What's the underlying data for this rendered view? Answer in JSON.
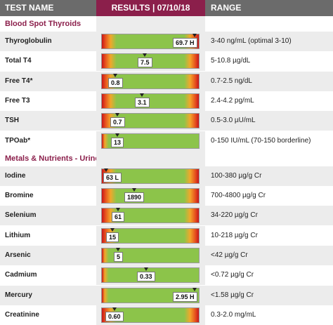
{
  "header": {
    "name": "TEST NAME",
    "results": "RESULTS | 07/10/18",
    "range": "RANGE"
  },
  "colors": {
    "brand": "#8b1f4b",
    "header_gray": "#6b6b6b",
    "row_shade": "#ececec",
    "bar_green": "#8cc44a",
    "bar_red": "#c8161b",
    "bar_orange": "#f2a72b"
  },
  "sections": [
    {
      "title": "Blood Spot Thyroids",
      "tests": [
        {
          "name": "Thyroglobulin",
          "value": "69.7 H",
          "level": 0.96,
          "range": "3-40 ng/mL (optimal 3-10)",
          "bar": "grad"
        },
        {
          "name": "Total T4",
          "value": "7.5",
          "level": 0.44,
          "range": "5-10.8 µg/dL",
          "bar": "grad"
        },
        {
          "name": "Free T4*",
          "value": "0.8",
          "level": 0.14,
          "range": "0.7-2.5 ng/dL",
          "bar": "grad"
        },
        {
          "name": "Free T3",
          "value": "3.1",
          "level": 0.41,
          "range": "2.4-4.2 pg/mL",
          "bar": "grad"
        },
        {
          "name": "TSH",
          "value": "0.7",
          "level": 0.16,
          "range": "0.5-3.0 µU/mL",
          "bar": "grad"
        },
        {
          "name": "TPOab*",
          "value": "13",
          "level": 0.16,
          "range": "0-150 IU/mL (70-150 borderline)",
          "bar": "green"
        }
      ]
    },
    {
      "title": "Metals & Nutrients - Urine",
      "tests": [
        {
          "name": "Iodine",
          "value": "63 L",
          "level": 0.04,
          "range": "100-380 µg/g Cr",
          "bar": "grad"
        },
        {
          "name": "Bromine",
          "value": "1890",
          "level": 0.33,
          "range": "700-4800 µg/g Cr",
          "bar": "grad"
        },
        {
          "name": "Selenium",
          "value": "61",
          "level": 0.17,
          "range": "34-220 µg/g Cr",
          "bar": "grad"
        },
        {
          "name": "Lithium",
          "value": "15",
          "level": 0.11,
          "range": "10-218 µg/g Cr",
          "bar": "grad"
        },
        {
          "name": "Arsenic",
          "value": "5",
          "level": 0.17,
          "range": "<42 µg/g Cr",
          "bar": "green"
        },
        {
          "name": "Cadmium",
          "value": "0.33",
          "level": 0.46,
          "range": "<0.72 µg/g Cr",
          "bar": "green"
        },
        {
          "name": "Mercury",
          "value": "2.95 H",
          "level": 0.96,
          "range": "<1.58 µg/g Cr",
          "bar": "green"
        },
        {
          "name": "Creatinine",
          "value": "0.60",
          "level": 0.13,
          "range": "0.3-2.0 mg/mL",
          "bar": "grad"
        }
      ]
    }
  ]
}
